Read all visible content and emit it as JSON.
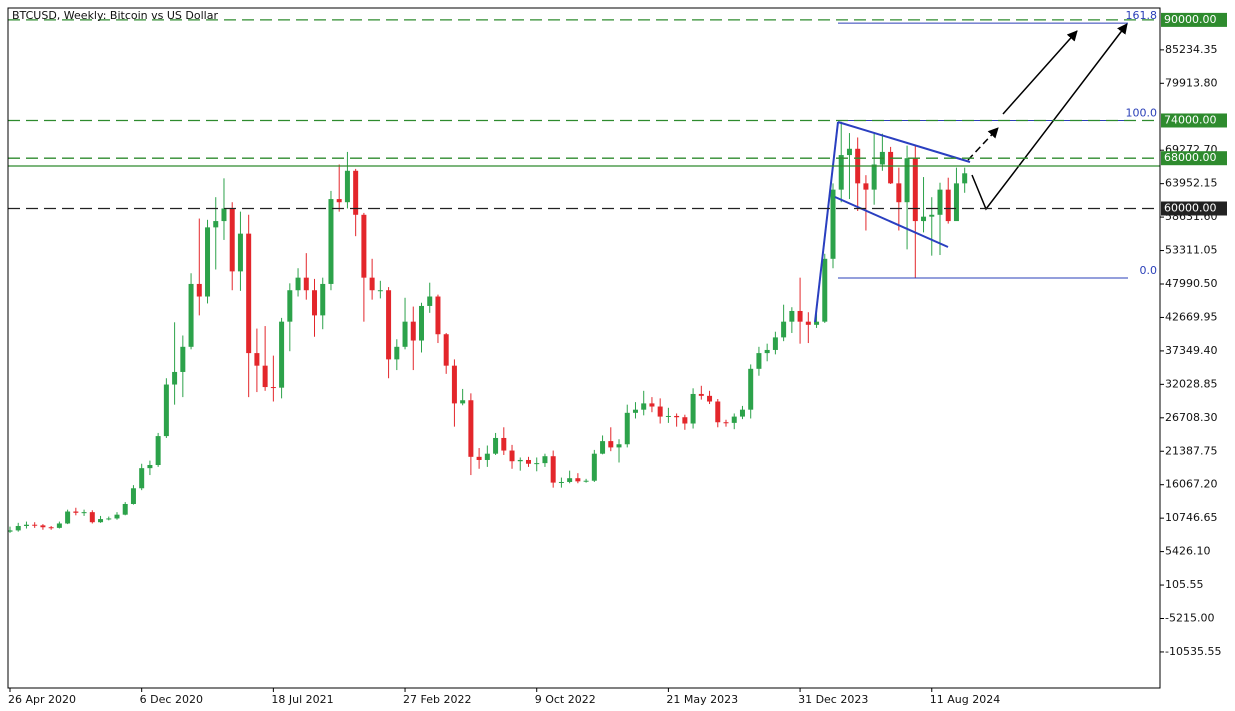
{
  "chart_data": {
    "type": "candlestick",
    "title": "BTCUSD, Weekly:  Bitcoin vs US Dollar",
    "categories": [
      "26 Apr 2020",
      null,
      null,
      null,
      null,
      null,
      null,
      null,
      null,
      null,
      null,
      null,
      null,
      null,
      null,
      null,
      "6 Dec 2020",
      null,
      null,
      null,
      null,
      null,
      null,
      null,
      null,
      null,
      null,
      null,
      null,
      null,
      null,
      null,
      "18 Jul 2021",
      null,
      null,
      null,
      null,
      null,
      null,
      null,
      null,
      null,
      null,
      null,
      null,
      null,
      null,
      null,
      "27 Feb 2022",
      null,
      null,
      null,
      null,
      null,
      null,
      null,
      null,
      null,
      null,
      null,
      null,
      null,
      null,
      null,
      "9 Oct 2022",
      null,
      null,
      null,
      null,
      null,
      null,
      null,
      null,
      null,
      null,
      null,
      null,
      null,
      null,
      null,
      "21 May 2023",
      null,
      null,
      null,
      null,
      null,
      null,
      null,
      null,
      null,
      null,
      null,
      null,
      null,
      null,
      null,
      "31 Dec 2023",
      null,
      null,
      null,
      null,
      null,
      null,
      null,
      null,
      null,
      null,
      null,
      null,
      null,
      null,
      null,
      "11 Aug 2024",
      null,
      null,
      null,
      null
    ],
    "open": [
      8600,
      8800,
      9500,
      9700,
      9600,
      9300,
      9200,
      9900,
      11800,
      11600,
      11700,
      10100,
      10600,
      10700,
      11300,
      13000,
      15500,
      18700,
      19200,
      23800,
      32000,
      34000,
      38000,
      48000,
      46000,
      57000,
      58000,
      60000,
      50000,
      56000,
      37000,
      35000,
      31600,
      31500,
      42000,
      47000,
      49000,
      47000,
      43000,
      48000,
      61500,
      61000,
      66000,
      59000,
      49000,
      47000,
      47000,
      36000,
      38000,
      42000,
      39000,
      44500,
      46000,
      40000,
      35000,
      29000,
      29500,
      20500,
      20000,
      21000,
      23500,
      21500,
      19800,
      20000,
      19400,
      19500,
      20600,
      16400,
      16500,
      17100,
      16600,
      16700,
      21000,
      23000,
      22000,
      22500,
      27500,
      28000,
      29000,
      28500,
      26900,
      27000,
      26800,
      25800,
      30500,
      30200,
      29300,
      26000,
      25900,
      26900,
      28000,
      34500,
      37000,
      37500,
      39500,
      42000,
      43700,
      42000,
      41500,
      42000,
      52000,
      63000,
      68500,
      69500,
      64000,
      63000,
      67000,
      69000,
      64000,
      61000,
      68000,
      58000,
      58700,
      59000,
      63000,
      58000,
      64000
    ],
    "high": [
      9400,
      10000,
      10200,
      10100,
      9800,
      9500,
      10200,
      12100,
      12400,
      12100,
      12000,
      11100,
      11000,
      11700,
      13300,
      16000,
      19400,
      19900,
      24300,
      33000,
      41900,
      39800,
      49700,
      58400,
      58200,
      61800,
      64800,
      61000,
      59500,
      59000,
      40900,
      41300,
      36600,
      42600,
      48100,
      50500,
      52900,
      48800,
      49000,
      62800,
      67000,
      69000,
      66300,
      59300,
      52000,
      48500,
      47500,
      39200,
      45800,
      44400,
      45000,
      48200,
      46300,
      40200,
      36000,
      31300,
      30600,
      21900,
      22300,
      24300,
      25200,
      22400,
      20400,
      20500,
      20400,
      21000,
      21500,
      17200,
      18300,
      17900,
      17000,
      21600,
      23900,
      25200,
      23300,
      28800,
      29200,
      31000,
      30000,
      29800,
      28300,
      27400,
      27200,
      31400,
      31800,
      31000,
      29700,
      26400,
      27400,
      28600,
      35200,
      38000,
      38500,
      40400,
      44700,
      44300,
      49000,
      43500,
      43900,
      52800,
      64000,
      73800,
      72000,
      71300,
      65300,
      71900,
      71900,
      69800,
      66500,
      70000,
      70000,
      65000,
      61800,
      64100,
      64900,
      66500,
      66500
    ],
    "low": [
      8400,
      8600,
      9100,
      9200,
      8900,
      8900,
      9100,
      9800,
      11200,
      11100,
      9900,
      10000,
      10400,
      10500,
      11200,
      12900,
      15200,
      17600,
      18900,
      23500,
      28800,
      30000,
      37600,
      43000,
      44900,
      50300,
      55000,
      47000,
      46900,
      30000,
      30800,
      31000,
      29300,
      29800,
      37300,
      46000,
      45500,
      39600,
      40800,
      47000,
      59500,
      60000,
      55600,
      42000,
      45500,
      45700,
      33000,
      34300,
      37600,
      34300,
      37100,
      43400,
      38600,
      33700,
      25300,
      28700,
      17600,
      18600,
      18900,
      20800,
      20800,
      18600,
      18300,
      18900,
      18200,
      18900,
      15600,
      15600,
      16300,
      16300,
      16400,
      16500,
      20900,
      21400,
      19600,
      22000,
      26600,
      27100,
      27600,
      25800,
      25900,
      25300,
      24800,
      25000,
      29600,
      28900,
      25200,
      25300,
      24900,
      26500,
      26600,
      33400,
      35700,
      36800,
      38900,
      40200,
      38500,
      38600,
      41000,
      41800,
      50500,
      61000,
      61500,
      59600,
      56500,
      60600,
      66000,
      63900,
      56500,
      53500,
      49000,
      56200,
      52500,
      52600,
      57600,
      58900,
      62500
    ],
    "close": [
      8800,
      9500,
      9700,
      9600,
      9300,
      9200,
      9900,
      11800,
      11600,
      11700,
      10100,
      10600,
      10700,
      11300,
      13000,
      15500,
      18700,
      19200,
      23800,
      32000,
      34000,
      38000,
      48000,
      46000,
      57000,
      58000,
      60000,
      50000,
      56000,
      37000,
      35000,
      31600,
      31500,
      42000,
      47000,
      49000,
      47000,
      43000,
      48000,
      61500,
      61000,
      66000,
      59000,
      49000,
      47000,
      47000,
      36000,
      38000,
      42000,
      39000,
      44500,
      46000,
      40000,
      35000,
      29000,
      29500,
      20500,
      20000,
      21000,
      23500,
      21500,
      19800,
      20000,
      19400,
      19500,
      20600,
      16400,
      16500,
      17100,
      16600,
      16700,
      21000,
      23000,
      22000,
      22500,
      27500,
      28000,
      29000,
      28500,
      26900,
      27000,
      26800,
      25800,
      30500,
      30200,
      29300,
      26000,
      25900,
      26900,
      28000,
      34500,
      37000,
      37500,
      39500,
      42000,
      43700,
      42000,
      41500,
      42000,
      52000,
      63000,
      68500,
      69500,
      64000,
      63000,
      67000,
      69000,
      64000,
      61000,
      68000,
      58000,
      58700,
      59000,
      63000,
      58000,
      64000,
      65600
    ],
    "up_color": "#2ca24a",
    "down_color": "#e3262b",
    "ylim": [
      -16270,
      91892
    ],
    "yticks": [
      85234.35,
      {
        "value": 79913.8,
        "label": "79913.80"
      },
      {
        "value": 69272.7,
        "label": "69272.70"
      },
      63952.15,
      {
        "value": 58631.6,
        "label": "58631.60"
      },
      53311.05,
      {
        "value": 47990.5,
        "label": "47990.50"
      },
      42669.95,
      {
        "value": 37349.4,
        "label": "37349.40"
      },
      32028.85,
      {
        "value": 26708.3,
        "label": "26708.30"
      },
      21387.75,
      {
        "value": 16067.2,
        "label": "16067.20"
      },
      10746.65,
      {
        "value": 5426.1,
        "label": "5426.10"
      },
      105.55,
      {
        "value": -5215,
        "label": "-5215.00"
      },
      -10535.55
    ],
    "levels": [
      {
        "value": 90000,
        "label": "90000.00",
        "color": "#2e8b2e",
        "style": "dashed"
      },
      {
        "value": 74000,
        "label": "74000.00",
        "color": "#2e8b2e",
        "style": "dashed"
      },
      {
        "value": 68000,
        "label": "68000.00",
        "color": "#2e8b2e",
        "style": "dashed"
      },
      {
        "value": 66760,
        "color": "#2e8b2e",
        "style": "solid"
      },
      {
        "value": 60000,
        "label": "60000.00",
        "color": "#222222",
        "style": "dashed"
      }
    ],
    "fib": [
      {
        "value": 89483,
        "label": "161.8"
      },
      {
        "value": 74000,
        "label": "100.0"
      },
      {
        "value": 48945,
        "label": "0.0"
      }
    ],
    "fib_color": "#2a3fb8"
  }
}
